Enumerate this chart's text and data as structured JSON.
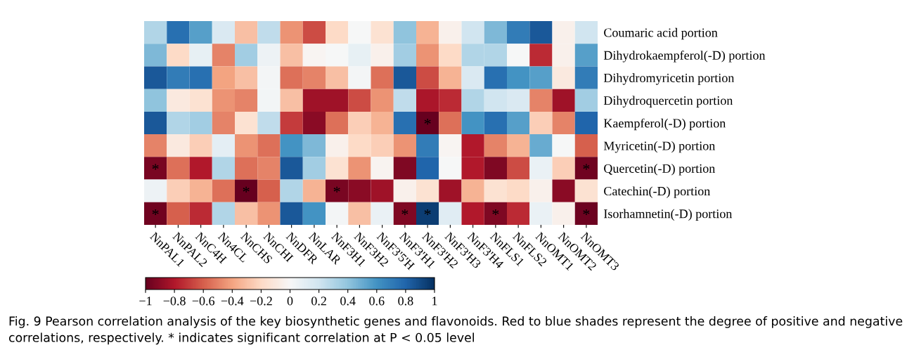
{
  "chart_data": {
    "type": "heatmap",
    "categories": [
      "NnPAL1",
      "NnPAL2",
      "NnC4H",
      "Nn4CL",
      "NnCHS",
      "NnCHI",
      "NnDFR",
      "NnLAR",
      "NnF3H1",
      "NnF3H2",
      "NnF3'5'H",
      "NnF3'H1",
      "NnF3'H2",
      "NnF3'H3",
      "NnF3'H4",
      "NnFLS1",
      "NnFLS2",
      "NnOMT1",
      "NnOMT2",
      "NnOMT3"
    ],
    "y_categories": [
      "Coumaric acid portion",
      "Dihydrokaempferol(-D) portion",
      "Dihydromyricetin portion",
      "Dihydroquercetin portion",
      "Kaempferol(-D) portion",
      "Myricetin(-D) portion",
      "Quercetin(-D) portion",
      "Catechin(-D) portion",
      "Isorhamnetin(-D) portion"
    ],
    "cells": [
      [
        0.3,
        0.75,
        0.55,
        0.15,
        -0.3,
        0.25,
        -0.45,
        -0.65,
        -0.2,
        0.0,
        -0.15,
        0.4,
        -0.35,
        -0.05,
        0.2,
        0.45,
        0.7,
        0.85,
        -0.05,
        0.2
      ],
      [
        0.45,
        -0.2,
        0.08,
        -0.5,
        0.35,
        0.05,
        -0.3,
        -0.02,
        0.0,
        0.08,
        -0.05,
        0.35,
        -0.45,
        -0.2,
        0.3,
        0.3,
        0.0,
        -0.75,
        -0.05,
        0.55
      ],
      [
        0.85,
        0.7,
        0.75,
        -0.4,
        -0.3,
        0.02,
        -0.55,
        -0.5,
        -0.3,
        0.02,
        -0.55,
        0.85,
        -0.65,
        -0.35,
        0.15,
        0.75,
        0.6,
        0.55,
        -0.1,
        0.7
      ],
      [
        0.4,
        -0.1,
        -0.15,
        -0.45,
        -0.5,
        0.03,
        -0.3,
        -0.85,
        -0.85,
        -0.65,
        -0.45,
        0.25,
        -0.82,
        -0.75,
        0.3,
        0.2,
        0.15,
        -0.5,
        -0.85,
        0.35
      ],
      [
        0.85,
        0.3,
        0.35,
        -0.5,
        -0.15,
        0.25,
        -0.7,
        -0.9,
        -0.55,
        -0.25,
        -0.35,
        0.75,
        -1.0,
        -0.55,
        0.6,
        0.75,
        0.55,
        -0.25,
        -0.5,
        0.8
      ],
      [
        -0.5,
        -0.1,
        -0.25,
        0.1,
        -0.45,
        -0.55,
        0.6,
        0.45,
        -0.05,
        -0.2,
        -0.25,
        -0.45,
        0.7,
        -0.02,
        -0.8,
        -0.5,
        -0.35,
        0.5,
        0.0,
        -0.6
      ],
      [
        -0.95,
        -0.55,
        -0.8,
        0.3,
        -0.55,
        -0.5,
        0.85,
        0.35,
        -0.15,
        -0.45,
        -0.03,
        -0.93,
        0.8,
        0.0,
        -0.8,
        -0.93,
        -0.65,
        0.07,
        -0.25,
        -0.97
      ],
      [
        0.05,
        -0.25,
        -0.35,
        -0.55,
        -1.0,
        -0.6,
        0.3,
        -0.35,
        -0.95,
        -0.9,
        -0.85,
        -0.05,
        -0.15,
        -0.85,
        -0.35,
        -0.15,
        -0.2,
        -0.05,
        -0.9,
        -0.15
      ],
      [
        -0.97,
        -0.6,
        -0.75,
        0.3,
        -0.3,
        -0.45,
        0.85,
        0.6,
        0.02,
        -0.3,
        0.07,
        -0.93,
        0.95,
        0.12,
        -0.8,
        -0.93,
        -0.75,
        0.07,
        -0.05,
        -0.98
      ]
    ],
    "clim": [
      -1,
      1
    ],
    "cticks": [
      {
        "value": -1,
        "label": "−1"
      },
      {
        "value": -0.8,
        "label": "−0.8"
      },
      {
        "value": -0.6,
        "label": "−0.6"
      },
      {
        "value": -0.4,
        "label": "−0.4"
      },
      {
        "value": -0.2,
        "label": "−0.2"
      },
      0,
      0.2,
      0.4,
      0.6,
      0.8,
      1
    ],
    "cell_labels": [
      [
        null,
        null,
        null,
        null,
        null,
        null,
        null,
        null,
        null,
        null,
        null,
        null,
        null,
        null,
        null,
        null,
        null,
        null,
        null,
        null
      ],
      [
        null,
        null,
        null,
        null,
        null,
        null,
        null,
        null,
        null,
        null,
        null,
        null,
        null,
        null,
        null,
        null,
        null,
        null,
        null,
        null
      ],
      [
        null,
        null,
        null,
        null,
        null,
        null,
        null,
        null,
        null,
        null,
        null,
        null,
        null,
        null,
        null,
        null,
        null,
        null,
        null,
        null
      ],
      [
        null,
        null,
        null,
        null,
        null,
        null,
        null,
        null,
        null,
        null,
        null,
        null,
        null,
        null,
        null,
        null,
        null,
        null,
        null,
        null
      ],
      [
        null,
        null,
        null,
        null,
        null,
        null,
        null,
        null,
        null,
        null,
        null,
        null,
        "*",
        null,
        null,
        null,
        null,
        null,
        null,
        null
      ],
      [
        null,
        null,
        null,
        null,
        null,
        null,
        null,
        null,
        null,
        null,
        null,
        null,
        null,
        null,
        null,
        null,
        null,
        null,
        null,
        null
      ],
      [
        "*",
        null,
        null,
        null,
        null,
        null,
        null,
        null,
        null,
        null,
        null,
        null,
        null,
        null,
        null,
        null,
        null,
        null,
        null,
        "*"
      ],
      [
        null,
        null,
        null,
        null,
        "*",
        null,
        null,
        null,
        "*",
        null,
        null,
        null,
        null,
        null,
        null,
        null,
        null,
        null,
        null,
        null
      ],
      [
        "*",
        null,
        null,
        null,
        null,
        null,
        null,
        null,
        null,
        null,
        null,
        "*",
        "*",
        null,
        null,
        "*",
        null,
        null,
        null,
        "*"
      ]
    ],
    "annotations": [
      "Fig. 9 Pearson correlation analysis of the key biosynthetic genes and flavonoids. Red to blue shades represent the degree of positive and negative correlations, respectively. * indicates significant correlation at P < 0.05 level"
    ]
  }
}
